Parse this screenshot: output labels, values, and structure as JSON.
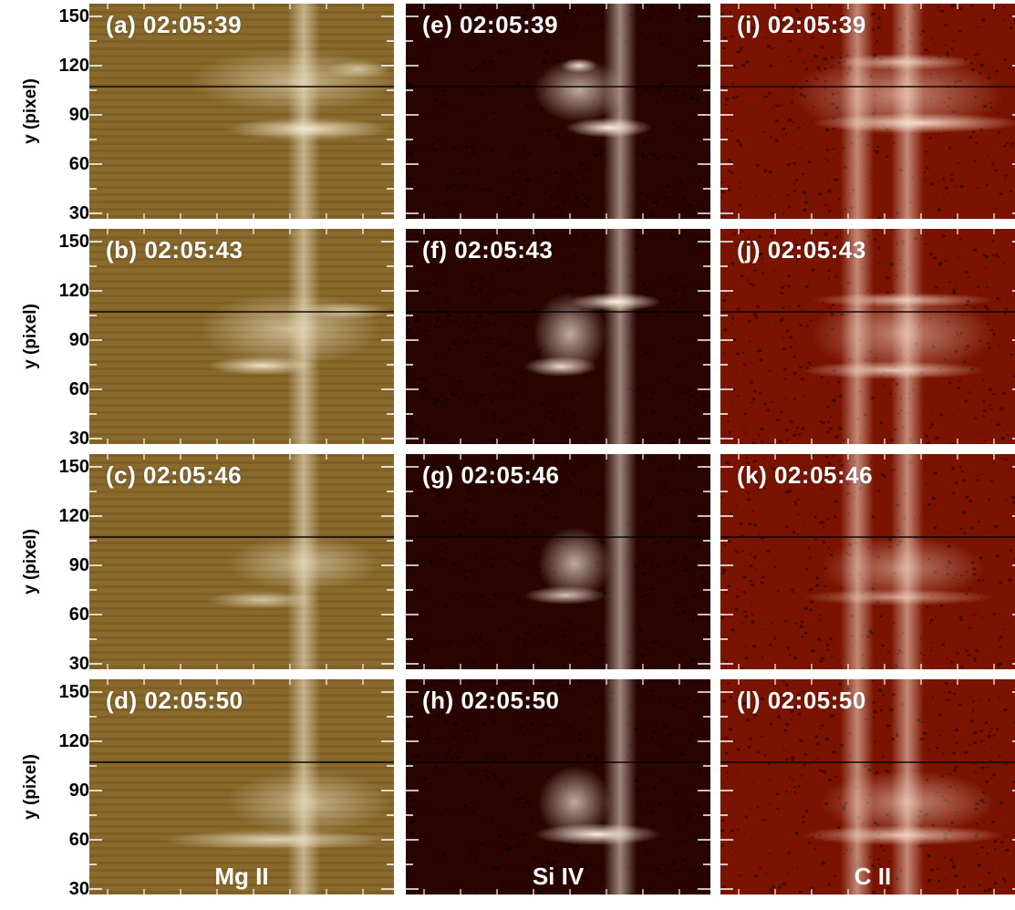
{
  "figure": {
    "y_axis": {
      "label": "y (pixel)",
      "tick_labels": [
        "150",
        "120",
        "90",
        "60",
        "30"
      ]
    },
    "columns": [
      {
        "line": "Mg II",
        "style": "mg"
      },
      {
        "line": "Si IV",
        "style": "si"
      },
      {
        "line": "C II",
        "style": "c"
      }
    ],
    "panels": [
      [
        {
          "label": "(a) 02:05:39"
        },
        {
          "label": "(e) 02:05:39"
        },
        {
          "label": "(i) 02:05:39"
        }
      ],
      [
        {
          "label": "(b) 02:05:43"
        },
        {
          "label": "(f) 02:05:43"
        },
        {
          "label": "(j) 02:05:43"
        }
      ],
      [
        {
          "label": "(c) 02:05:46"
        },
        {
          "label": "(g) 02:05:46"
        },
        {
          "label": "(k) 02:05:46"
        }
      ],
      [
        {
          "label": "(d) 02:05:50"
        },
        {
          "label": "(h) 02:05:50"
        },
        {
          "label": "(l) 02:05:50"
        }
      ]
    ],
    "colors": {
      "mg_base": "#8a6a2c",
      "mg_bright": "#f7efd8",
      "si_base": "#2a0500",
      "si_bright": "#fff0e0",
      "c_base": "#7a1400",
      "c_bright": "#ffe8d8"
    }
  }
}
